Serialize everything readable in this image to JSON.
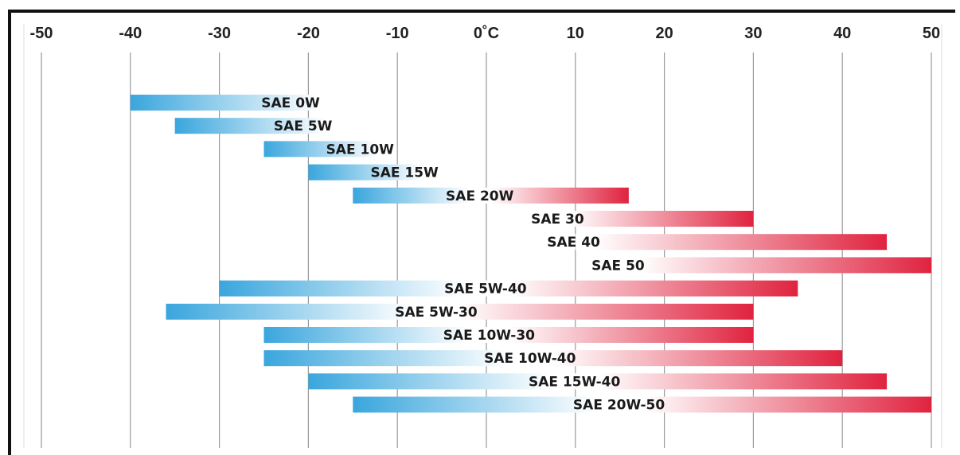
{
  "chart_data": {
    "type": "bar",
    "orientation": "horizontal-range",
    "x_unit": "°C",
    "xlim": [
      -50,
      50
    ],
    "x_ticks": [
      {
        "value": -50,
        "label": "-50"
      },
      {
        "value": -40,
        "label": "-40"
      },
      {
        "value": -30,
        "label": "-30"
      },
      {
        "value": -20,
        "label": "-20"
      },
      {
        "value": -10,
        "label": "-10"
      },
      {
        "value": 0,
        "label": "0˚C"
      },
      {
        "value": 10,
        "label": "10"
      },
      {
        "value": 20,
        "label": "20"
      },
      {
        "value": 30,
        "label": "30"
      },
      {
        "value": 40,
        "label": "40"
      },
      {
        "value": 50,
        "label": "50"
      }
    ],
    "grid": true,
    "colors": {
      "cold": "#3aa6dd",
      "hot": "#e0233f"
    },
    "bars": [
      {
        "label": "SAE 0W",
        "x_start": -40,
        "x_end": -15,
        "cold_end": -40,
        "hot_end": null
      },
      {
        "label": "SAE 5W",
        "x_start": -35,
        "x_end": -15,
        "cold_end": -35,
        "hot_end": null
      },
      {
        "label": "SAE 10W",
        "x_start": -25,
        "x_end": -10,
        "cold_end": -25,
        "hot_end": null
      },
      {
        "label": "SAE 15W",
        "x_start": -20,
        "x_end": -5,
        "cold_end": -20,
        "hot_end": null
      },
      {
        "label": "SAE 20W",
        "x_start": -15,
        "x_end": 16,
        "cold_end": -15,
        "hot_end": 16
      },
      {
        "label": "SAE 30",
        "x_start": 5,
        "x_end": 30,
        "cold_end": null,
        "hot_end": 30
      },
      {
        "label": "SAE 40",
        "x_start": 5,
        "x_end": 45,
        "cold_end": null,
        "hot_end": 45
      },
      {
        "label": "SAE 50",
        "x_start": 10,
        "x_end": 50,
        "cold_end": null,
        "hot_end": 50
      },
      {
        "label": "SAE 5W-40",
        "x_start": -30,
        "x_end": 35,
        "cold_end": -30,
        "hot_end": 35
      },
      {
        "label": "SAE 5W-30",
        "x_start": -36,
        "x_end": 30,
        "cold_end": -36,
        "hot_end": 30
      },
      {
        "label": "SAE 10W-30",
        "x_start": -25,
        "x_end": 30,
        "cold_end": -25,
        "hot_end": 30
      },
      {
        "label": "SAE 10W-40",
        "x_start": -25,
        "x_end": 40,
        "cold_end": -25,
        "hot_end": 40
      },
      {
        "label": "SAE 15W-40",
        "x_start": -20,
        "x_end": 45,
        "cold_end": -20,
        "hot_end": 45
      },
      {
        "label": "SAE 20W-50",
        "x_start": -15,
        "x_end": 50,
        "cold_end": -15,
        "hot_end": 50
      }
    ]
  }
}
